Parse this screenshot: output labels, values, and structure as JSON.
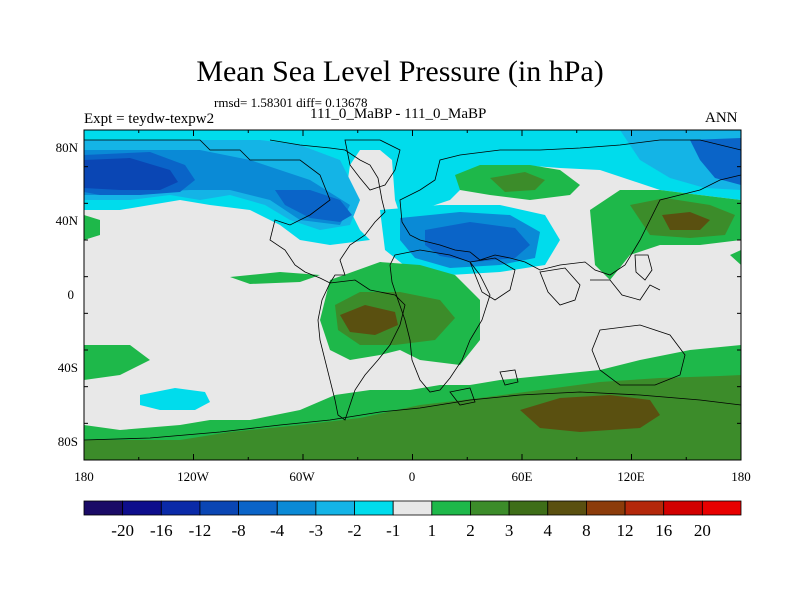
{
  "title": "Mean Sea Level Pressure (in hPa)",
  "stats": "rmsd= 1.58301 diff= 0.13678",
  "expt": "Expt = teydw-texpw2",
  "subtitle": "111_0_MaBP - 111_0_MaBP",
  "season": "ANN",
  "map": {
    "lat_labels": [
      "80N",
      "40N",
      "0",
      "40S",
      "80S"
    ],
    "lon_labels": [
      "180",
      "120W",
      "60W",
      "0",
      "60E",
      "120E",
      "180"
    ]
  },
  "colorbar": {
    "levels": [
      "-20",
      "-16",
      "-12",
      "-8",
      "-4",
      "-3",
      "-2",
      "-1",
      "1",
      "2",
      "3",
      "4",
      "8",
      "12",
      "16",
      "20"
    ],
    "colors": [
      "#1a0a66",
      "#0e0e8c",
      "#0a2aa8",
      "#0a46b4",
      "#0a64c8",
      "#0a8ad6",
      "#14b4e6",
      "#00dcec",
      "#e8e8e8",
      "#1eb84a",
      "#3c8c2a",
      "#3e6e18",
      "#5a5010",
      "#8c3c0a",
      "#b4280a",
      "#d20000",
      "#e80000"
    ]
  }
}
